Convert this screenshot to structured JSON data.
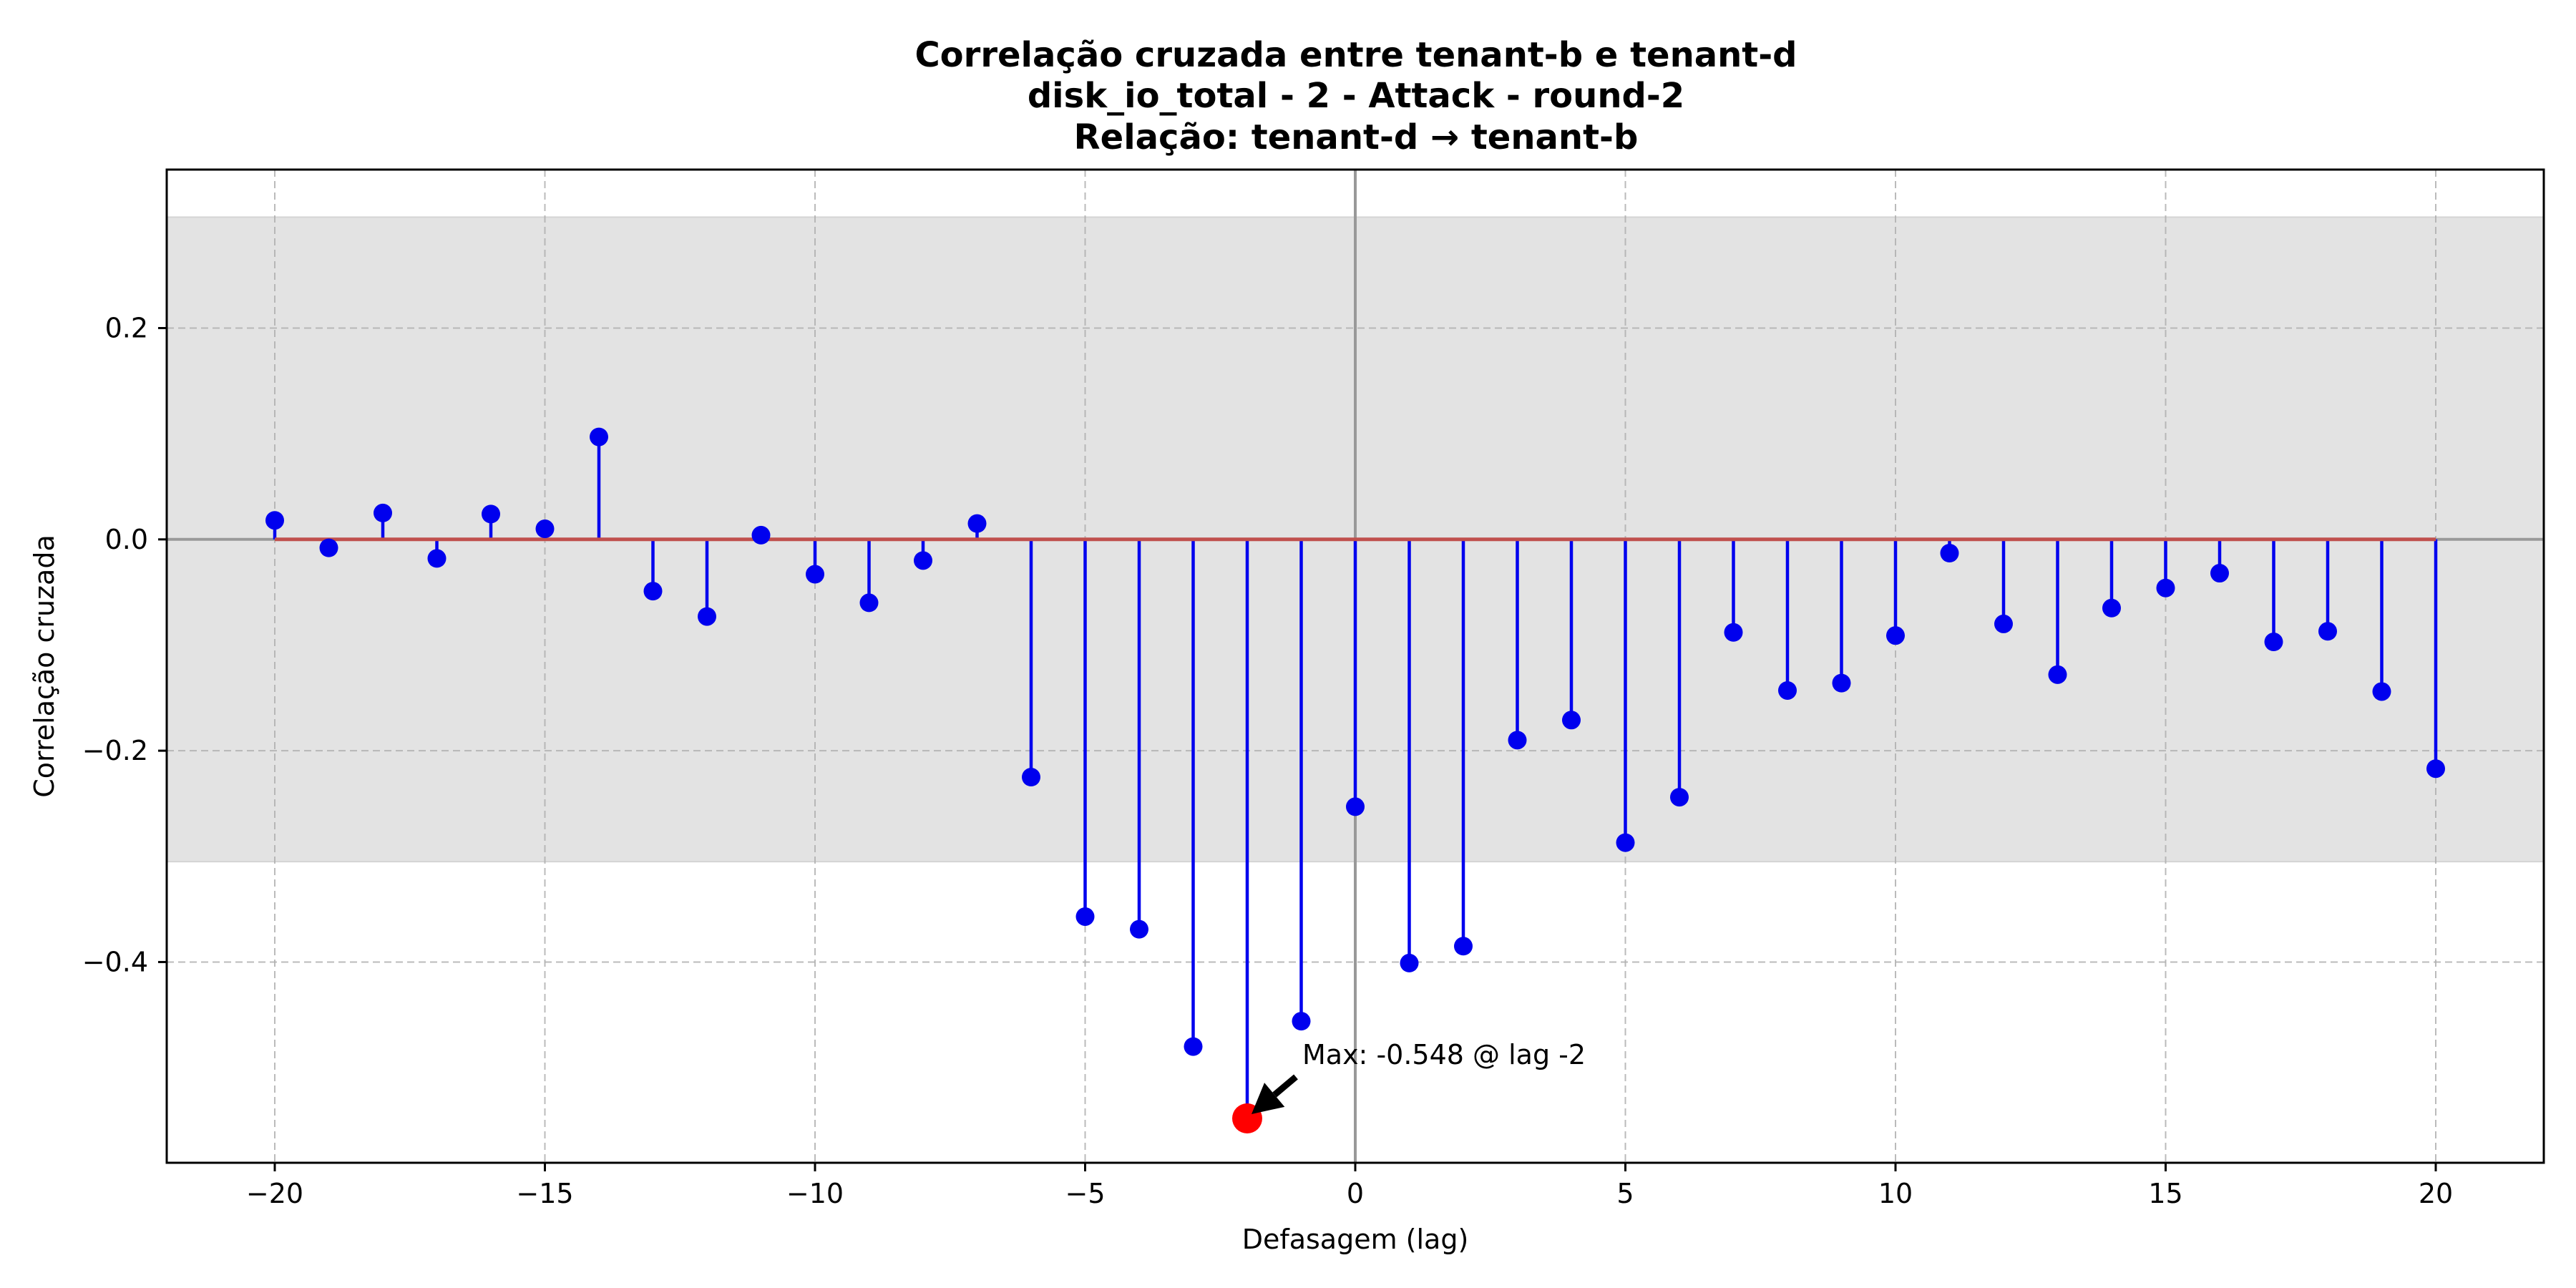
{
  "chart_data": {
    "type": "stem",
    "title_lines": [
      "Correlação cruzada entre tenant-b e tenant-d",
      "disk_io_total - 2 - Attack - round-2",
      "Relação: tenant-d → tenant-b"
    ],
    "xlabel": "Defasagem (lag)",
    "ylabel": "Correlação cruzada",
    "xlim": [
      -22,
      22
    ],
    "ylim": [
      -0.59,
      0.35
    ],
    "xticks": [
      -20,
      -15,
      -10,
      -5,
      0,
      5,
      10,
      15,
      20
    ],
    "xtick_labels": [
      "−20",
      "−15",
      "−10",
      "−5",
      "0",
      "5",
      "10",
      "15",
      "20"
    ],
    "yticks": [
      -0.4,
      -0.2,
      0.0,
      0.2
    ],
    "ytick_labels": [
      "−0.4",
      "−0.2",
      "0.0",
      "0.2"
    ],
    "grid": true,
    "confidence_band": [
      -0.305,
      0.305
    ],
    "x": [
      -20,
      -19,
      -18,
      -17,
      -16,
      -15,
      -14,
      -13,
      -12,
      -11,
      -10,
      -9,
      -8,
      -7,
      -6,
      -5,
      -4,
      -3,
      -2,
      -1,
      0,
      1,
      2,
      3,
      4,
      5,
      6,
      7,
      8,
      9,
      10,
      11,
      12,
      13,
      14,
      15,
      16,
      17,
      18,
      19,
      20
    ],
    "values": [
      0.018,
      -0.008,
      0.025,
      -0.018,
      0.024,
      0.01,
      0.097,
      -0.049,
      -0.073,
      0.004,
      -0.033,
      -0.06,
      -0.02,
      0.015,
      -0.225,
      -0.357,
      -0.369,
      -0.48,
      -0.548,
      -0.456,
      -0.253,
      -0.401,
      -0.385,
      -0.19,
      -0.171,
      -0.287,
      -0.244,
      -0.088,
      -0.143,
      -0.136,
      -0.091,
      -0.013,
      -0.08,
      -0.128,
      -0.065,
      -0.046,
      -0.032,
      -0.097,
      -0.087,
      -0.144,
      -0.217
    ],
    "max_point": {
      "lag": -2,
      "value": -0.548
    },
    "annotation": "Max: -0.548 @ lag -2",
    "colors": {
      "stem": "#0000ee",
      "baseline": "#c0504d",
      "highlight": "#ff0000",
      "band": "#e3e3e3",
      "grid": "#b0b0b0",
      "zero_line": "#999999"
    }
  }
}
